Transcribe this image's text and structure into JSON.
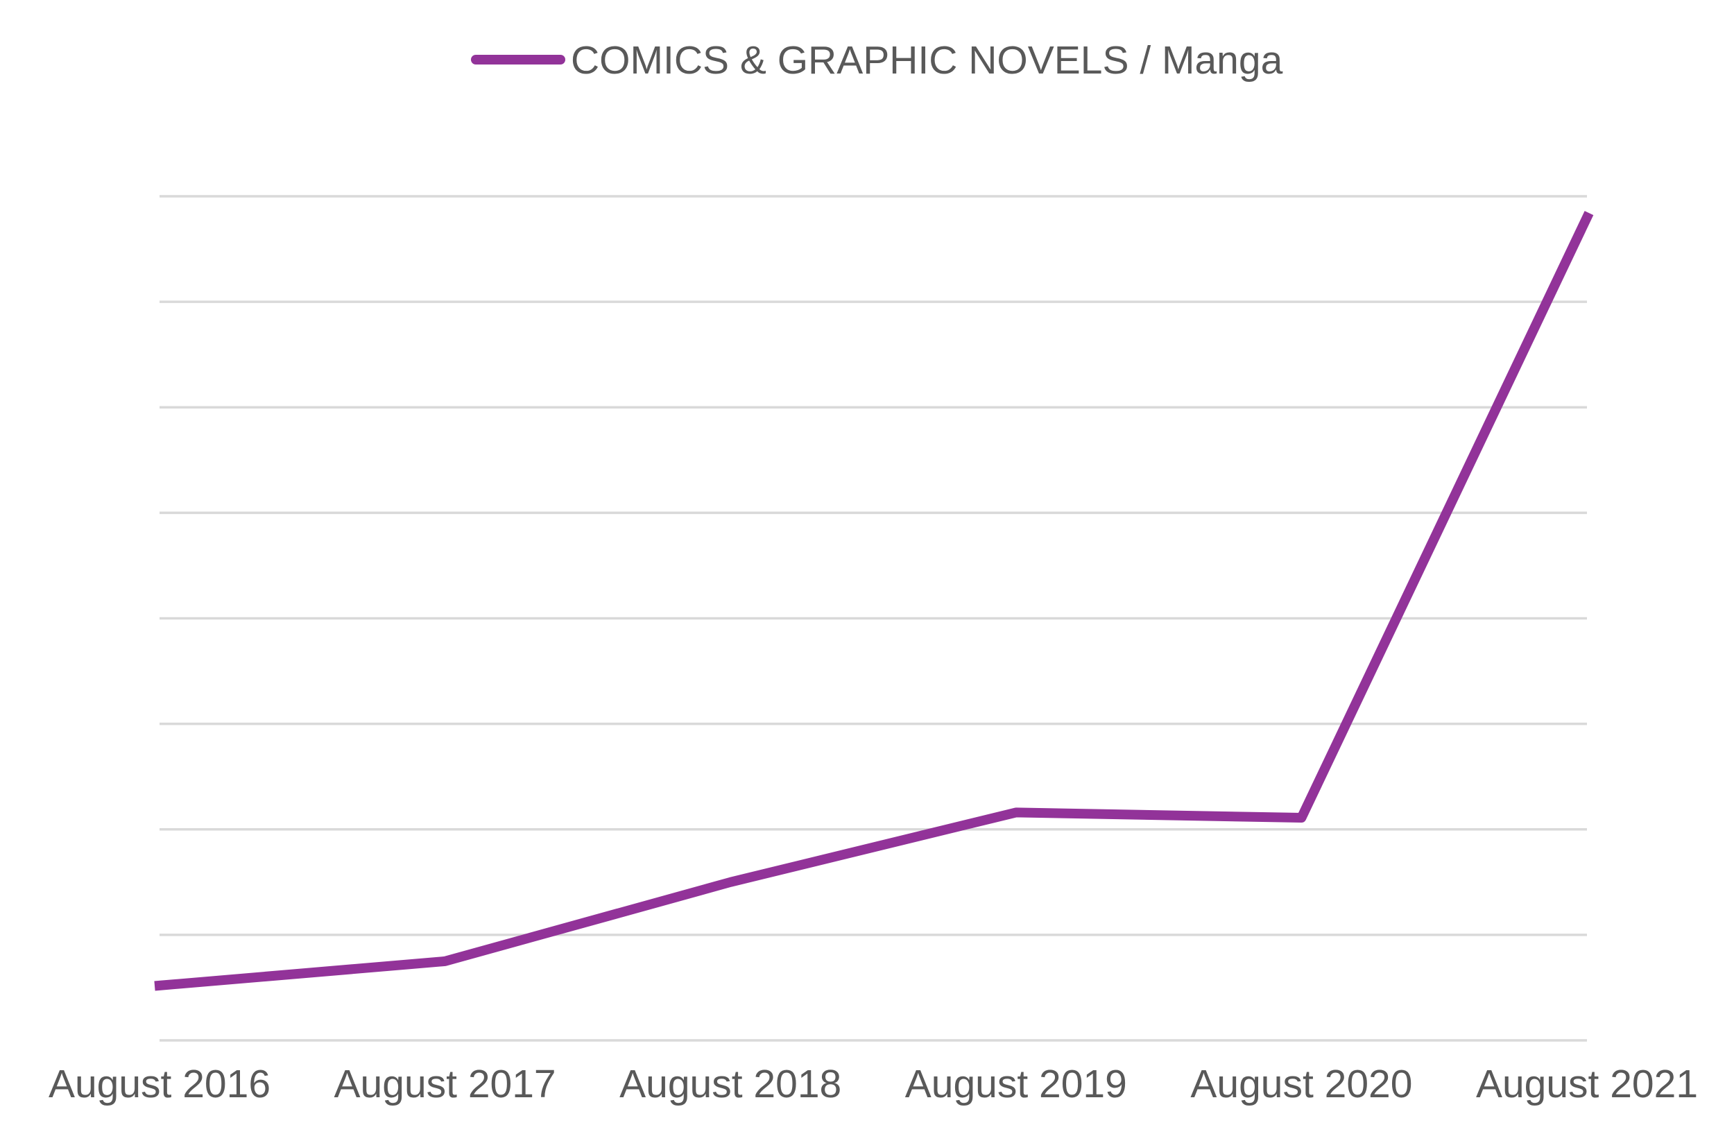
{
  "chart_data": {
    "type": "line",
    "categories": [
      "August 2016",
      "August 2017",
      "August 2018",
      "August 2019",
      "August 2020",
      "August 2021"
    ],
    "series": [
      {
        "name": "COMICS & GRAPHIC NOVELS / Manga",
        "values": [
          0.52,
          0.75,
          1.5,
          2.16,
          2.11,
          7.8
        ],
        "color": "#923399"
      }
    ],
    "title": "",
    "xlabel": "",
    "ylabel": "",
    "ylim": [
      0,
      8
    ],
    "y_ticks_visible": false,
    "grid": true,
    "gridline_color": "#d9d9d9",
    "legend": "top"
  }
}
